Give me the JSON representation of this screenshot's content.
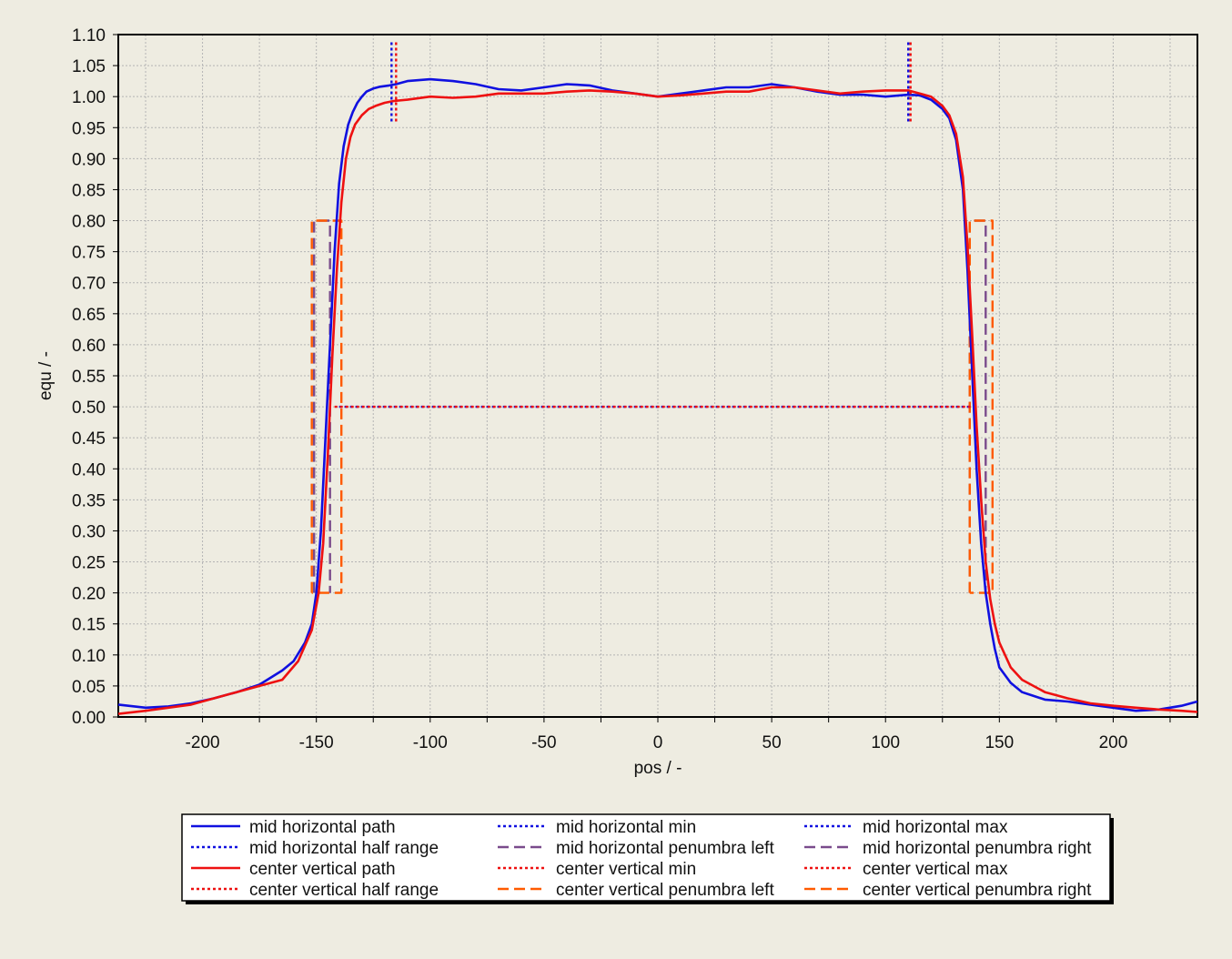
{
  "chart_data": {
    "type": "line",
    "title": "",
    "xlabel": "pos / -",
    "ylabel": "equ / -",
    "xlim": [
      -237,
      237
    ],
    "ylim": [
      0.0,
      1.1
    ],
    "x_ticks": [
      -200,
      -150,
      -100,
      -50,
      0,
      50,
      100,
      150,
      200
    ],
    "y_ticks": [
      0.0,
      0.05,
      0.1,
      0.15,
      0.2,
      0.25,
      0.3,
      0.35,
      0.4,
      0.45,
      0.5,
      0.55,
      0.6,
      0.65,
      0.7,
      0.75,
      0.8,
      0.85,
      0.9,
      0.95,
      1.0,
      1.05,
      1.1
    ],
    "grid": true,
    "legend_position": "bottom",
    "series": [
      {
        "name": "mid horizontal path",
        "color": "#1010e0",
        "style": "solid",
        "x": [
          -237,
          -225,
          -215,
          -205,
          -195,
          -185,
          -175,
          -165,
          -160,
          -155,
          -152,
          -150,
          -148,
          -146,
          -144,
          -142,
          -140,
          -138,
          -136,
          -134,
          -132,
          -130,
          -128,
          -125,
          -122,
          -118,
          -115,
          -110,
          -100,
          -90,
          -80,
          -70,
          -60,
          -50,
          -40,
          -30,
          -20,
          -10,
          0,
          10,
          20,
          30,
          40,
          50,
          60,
          70,
          80,
          90,
          100,
          110,
          115,
          120,
          125,
          128,
          131,
          134,
          136,
          138,
          140,
          142,
          144,
          146,
          148,
          150,
          155,
          160,
          170,
          180,
          190,
          200,
          210,
          220,
          230,
          237
        ],
        "y": [
          0.02,
          0.015,
          0.017,
          0.022,
          0.03,
          0.04,
          0.052,
          0.075,
          0.09,
          0.12,
          0.15,
          0.2,
          0.3,
          0.45,
          0.6,
          0.75,
          0.86,
          0.92,
          0.955,
          0.975,
          0.99,
          1.0,
          1.008,
          1.013,
          1.016,
          1.018,
          1.02,
          1.025,
          1.028,
          1.025,
          1.02,
          1.012,
          1.01,
          1.015,
          1.02,
          1.018,
          1.01,
          1.005,
          1.0,
          1.005,
          1.01,
          1.015,
          1.015,
          1.02,
          1.015,
          1.008,
          1.003,
          1.003,
          1.0,
          1.003,
          1.002,
          0.995,
          0.98,
          0.965,
          0.93,
          0.85,
          0.72,
          0.56,
          0.4,
          0.28,
          0.2,
          0.15,
          0.11,
          0.08,
          0.055,
          0.04,
          0.028,
          0.025,
          0.02,
          0.015,
          0.01,
          0.012,
          0.018,
          0.025
        ]
      },
      {
        "name": "mid horizontal half range",
        "color": "#1010e0",
        "style": "dotted",
        "x": [
          -140,
          137
        ],
        "y": [
          0.5,
          0.5
        ]
      },
      {
        "name": "mid horizontal min",
        "color": "#1010e0",
        "style": "dotted",
        "x": [
          -117,
          -117
        ],
        "y": [
          0.96,
          1.09
        ]
      },
      {
        "name": "mid horizontal max",
        "color": "#1010e0",
        "style": "dotted",
        "x": [
          110,
          110
        ],
        "y": [
          0.96,
          1.09
        ]
      },
      {
        "name": "mid horizontal penumbra left",
        "color": "#7a4b8c",
        "style": "dashed",
        "x": [
          -151,
          -151,
          -144,
          -144
        ],
        "y": [
          0.2,
          0.8,
          0.8,
          0.2
        ]
      },
      {
        "name": "mid horizontal penumbra right",
        "color": "#7a4b8c",
        "style": "dashed",
        "x": [
          137,
          137,
          144,
          144
        ],
        "y": [
          0.2,
          0.8,
          0.8,
          0.2
        ]
      },
      {
        "name": "center vertical path",
        "color": "#ee1111",
        "style": "solid",
        "x": [
          -237,
          -225,
          -215,
          -205,
          -195,
          -185,
          -175,
          -165,
          -158,
          -152,
          -149,
          -147,
          -145,
          -143,
          -141,
          -139,
          -137,
          -135,
          -133,
          -130,
          -127,
          -124,
          -120,
          -116,
          -110,
          -100,
          -90,
          -80,
          -70,
          -60,
          -50,
          -40,
          -30,
          -20,
          -10,
          0,
          10,
          20,
          30,
          40,
          50,
          60,
          70,
          80,
          90,
          100,
          110,
          115,
          120,
          125,
          128,
          131,
          134,
          136,
          138,
          140,
          142,
          144,
          146,
          148,
          150,
          155,
          160,
          170,
          180,
          190,
          200,
          210,
          220,
          230,
          237
        ],
        "y": [
          0.005,
          0.01,
          0.015,
          0.02,
          0.03,
          0.04,
          0.05,
          0.06,
          0.09,
          0.14,
          0.2,
          0.28,
          0.42,
          0.58,
          0.72,
          0.83,
          0.9,
          0.935,
          0.955,
          0.97,
          0.98,
          0.985,
          0.99,
          0.993,
          0.995,
          1.0,
          0.998,
          1.0,
          1.005,
          1.005,
          1.005,
          1.008,
          1.01,
          1.008,
          1.005,
          1.0,
          1.002,
          1.005,
          1.008,
          1.008,
          1.015,
          1.015,
          1.01,
          1.005,
          1.008,
          1.01,
          1.01,
          1.005,
          1.0,
          0.985,
          0.97,
          0.94,
          0.87,
          0.76,
          0.62,
          0.47,
          0.35,
          0.25,
          0.19,
          0.15,
          0.12,
          0.08,
          0.06,
          0.04,
          0.03,
          0.022,
          0.018,
          0.015,
          0.012,
          0.01,
          0.008
        ]
      },
      {
        "name": "center vertical half range",
        "color": "#ee1111",
        "style": "dotted",
        "x": [
          -142,
          141
        ],
        "y": [
          0.5,
          0.5
        ]
      },
      {
        "name": "center vertical min",
        "color": "#ee1111",
        "style": "dotted",
        "x": [
          -115,
          -115
        ],
        "y": [
          0.96,
          1.09
        ]
      },
      {
        "name": "center vertical max",
        "color": "#ee1111",
        "style": "dotted",
        "x": [
          111,
          111
        ],
        "y": [
          0.96,
          1.09
        ]
      },
      {
        "name": "center vertical penumbra left",
        "color": "#ff5a00",
        "style": "dashed",
        "x": [
          -152,
          -152,
          -139,
          -139,
          -152
        ],
        "y": [
          0.2,
          0.8,
          0.8,
          0.2,
          0.2
        ]
      },
      {
        "name": "center vertical penumbra right",
        "color": "#ff5a00",
        "style": "dashed",
        "x": [
          137,
          137,
          147,
          147,
          137
        ],
        "y": [
          0.2,
          0.8,
          0.8,
          0.2,
          0.2
        ]
      }
    ],
    "legend_order": [
      "mid horizontal path",
      "mid horizontal min",
      "mid horizontal max",
      "mid horizontal half range",
      "mid horizontal penumbra left",
      "mid horizontal penumbra right",
      "center vertical path",
      "center vertical min",
      "center vertical max",
      "center vertical half range",
      "center vertical penumbra left",
      "center vertical penumbra right"
    ]
  }
}
